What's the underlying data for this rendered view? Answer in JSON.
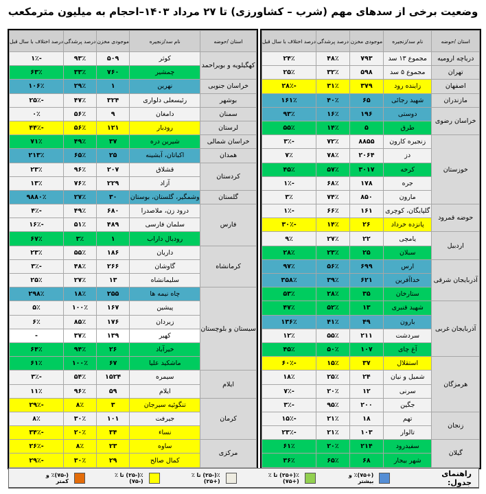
{
  "title": "وضعیت برخی از سدهای مهم (شرب – کشاورزی) تا ۲۷ مرداد ۱۴۰۳–احجام به میلیون مترمکعب",
  "headers": [
    "استان /حوضه",
    "نام سد/زنجیره",
    "موجودی مخزن",
    "درصد پرشدگی",
    "درصد اختلاف با سال قبل"
  ],
  "colors": {
    "green": "#00cc5f",
    "blue": "#4bacc6",
    "yellow": "#ffff00",
    "light": "#f2f2f2",
    "white": "#ffffff",
    "province": "#d9d9d9",
    "header": "#d0d0d0"
  },
  "tables": [
    {
      "groups": [
        {
          "province": "دریاچه ارومیه",
          "dams": [
            {
              "name": "مجموع ۱۳ سد",
              "volume": "۷۹۳",
              "fill": "۴۸٪",
              "diff": "۲۴٪",
              "status": "light"
            }
          ]
        },
        {
          "province": "تهران",
          "dams": [
            {
              "name": "مجموع ۵ سد",
              "volume": "۵۹۸",
              "fill": "۳۲٪",
              "diff": "۲۵٪",
              "status": "light"
            }
          ]
        },
        {
          "province": "اصفهان",
          "dams": [
            {
              "name": "زاینده رود",
              "volume": "۳۷۹",
              "fill": "۳۱٪",
              "diff": "-۲۸٪",
              "status": "yellow"
            }
          ]
        },
        {
          "province": "مازندران",
          "dams": [
            {
              "name": "شهید رجائی",
              "volume": "۶۵",
              "fill": "۴۰٪",
              "diff": "۱۶۱٪",
              "status": "blue"
            }
          ]
        },
        {
          "province": "خراسان رضوی",
          "dams": [
            {
              "name": "دوستی",
              "volume": "۱۹۶",
              "fill": "۱۶٪",
              "diff": "۹۳٪",
              "status": "blue"
            },
            {
              "name": "طرق",
              "volume": "۵",
              "fill": "۱۴٪",
              "diff": "۵۵٪",
              "status": "green"
            }
          ]
        },
        {
          "province": "خوزستان",
          "dams": [
            {
              "name": "زنجیره کارون",
              "volume": "۸۸۵۵",
              "fill": "۷۲٪",
              "diff": "-۳٪",
              "status": "light"
            },
            {
              "name": "دز",
              "volume": "۲۰۶۴",
              "fill": "۷۸٪",
              "diff": "۷٪",
              "status": "light"
            },
            {
              "name": "کرخه",
              "volume": "۳۰۱۷",
              "fill": "۵۷٪",
              "diff": "۴۵٪",
              "status": "green"
            },
            {
              "name": "جره",
              "volume": "۱۷۸",
              "fill": "۶۸٪",
              "diff": "-۱٪",
              "status": "light"
            },
            {
              "name": "مارون",
              "volume": "۸۵۰",
              "fill": "۷۴٪",
              "diff": "۳٪",
              "status": "light"
            }
          ]
        },
        {
          "province": "حوضه قمرود",
          "dams": [
            {
              "name": "گلپایگان، کوچری",
              "volume": "۱۶۱",
              "fill": "۶۶٪",
              "diff": "-۱٪",
              "status": "light"
            },
            {
              "name": "پانزده خرداد",
              "volume": "۲۶",
              "fill": "۱۴٪",
              "diff": "-۳۰٪",
              "status": "yellow"
            }
          ]
        },
        {
          "province": "اردبیل",
          "dams": [
            {
              "name": "یامچی",
              "volume": "۲۲",
              "fill": "۲۷٪",
              "diff": "۹٪",
              "status": "light"
            },
            {
              "name": "سبلان",
              "volume": "۲۵",
              "fill": "۲۳٪",
              "diff": "۲۸٪",
              "status": "green"
            }
          ]
        },
        {
          "province": "آذربایجان شرقی",
          "dams": [
            {
              "name": "ارس",
              "volume": "۶۹۹",
              "fill": "۵۶٪",
              "diff": "۹۷٪",
              "status": "blue"
            },
            {
              "name": "خداآفرین",
              "volume": "۶۲۱",
              "fill": "۳۹٪",
              "diff": "۳۵۸٪",
              "status": "blue"
            },
            {
              "name": "ستارخان",
              "volume": "۳۵",
              "fill": "۲۸٪",
              "diff": "۵۳٪",
              "status": "green"
            }
          ]
        },
        {
          "province": "آذربایجان غربی",
          "dams": [
            {
              "name": "شهید قنبری",
              "volume": "۱۳",
              "fill": "۵۲٪",
              "diff": "۴۷٪",
              "status": "green"
            },
            {
              "name": "بارون",
              "volume": "۴۹",
              "fill": "۴۱٪",
              "diff": "۱۳۶٪",
              "status": "blue"
            },
            {
              "name": "سردشت",
              "volume": "۲۱۱",
              "fill": "۵۵٪",
              "diff": "۱۲٪",
              "status": "light"
            },
            {
              "name": "آغ چای",
              "volume": "۱۰۷",
              "fill": "۵۰٪",
              "diff": "۴۵٪",
              "status": "green"
            }
          ]
        },
        {
          "province": "هرمزگان",
          "dams": [
            {
              "name": "استقلال",
              "volume": "۳۷",
              "fill": "۱۵٪",
              "diff": "-۶۰٪",
              "status": "yellow"
            },
            {
              "name": "شمیل و نیان",
              "volume": "۲۴",
              "fill": "۲۵٪",
              "diff": "۱۸٪",
              "status": "light"
            },
            {
              "name": "سرنی",
              "volume": "۱۲",
              "fill": "۲۰٪",
              "diff": "-۷٪",
              "status": "light"
            },
            {
              "name": "جگین",
              "volume": "۲۰۰",
              "fill": "۹۵٪",
              "diff": "-۳٪",
              "status": "light"
            }
          ]
        },
        {
          "province": "زنجان",
          "dams": [
            {
              "name": "تهم",
              "volume": "۱۸",
              "fill": "۲۱٪",
              "diff": "-۱۵٪",
              "status": "light"
            },
            {
              "name": "تالوار",
              "volume": "۱۰۳",
              "fill": "۲۱٪",
              "diff": "-۲۳٪",
              "status": "light"
            }
          ]
        },
        {
          "province": "گیلان",
          "dams": [
            {
              "name": "سفیدرود",
              "volume": "۲۱۴",
              "fill": "۲۰٪",
              "diff": "۶۱٪",
              "status": "green"
            },
            {
              "name": "شهر بیجار",
              "volume": "۶۸",
              "fill": "۶۵٪",
              "diff": "۳۶٪",
              "status": "green"
            }
          ]
        }
      ]
    },
    {
      "groups": [
        {
          "province": "کهگیلویه و بویراحمد",
          "dams": [
            {
              "name": "کوثر",
              "volume": "۵۰۹",
              "fill": "۹۳٪",
              "diff": "-۱٪",
              "status": "light"
            },
            {
              "name": "چمشیر",
              "volume": "۷۶۰",
              "fill": "۳۳٪",
              "diff": "۶۳٪",
              "status": "green"
            }
          ]
        },
        {
          "province": "خراسان جنوبی",
          "dams": [
            {
              "name": "نهرین",
              "volume": "۱",
              "fill": "۲۹٪",
              "diff": "۱۰۶٪",
              "status": "blue"
            }
          ]
        },
        {
          "province": "بوشهر",
          "dams": [
            {
              "name": "رئیسعلی دلواری",
              "volume": "۳۲۴",
              "fill": "۴۷٪",
              "diff": "-۲۵٪",
              "status": "light"
            }
          ]
        },
        {
          "province": "سمنان",
          "dams": [
            {
              "name": "دامغان",
              "volume": "۹",
              "fill": "۵۶٪",
              "diff": "۰٪",
              "status": "light"
            }
          ]
        },
        {
          "province": "لرستان",
          "dams": [
            {
              "name": "رودبار",
              "volume": "۱۲۱",
              "fill": "۵۶٪",
              "diff": "-۴۴٪",
              "status": "yellow"
            }
          ]
        },
        {
          "province": "خراسان شمالی",
          "dams": [
            {
              "name": "شیرین دره",
              "volume": "۳۷",
              "fill": "۴۹٪",
              "diff": "۷۱٪",
              "status": "green"
            }
          ]
        },
        {
          "province": "همدان",
          "dams": [
            {
              "name": "اکباتان، آبشینه",
              "volume": "۲۵",
              "fill": "۶۵٪",
              "diff": "۲۱۳٪",
              "status": "blue"
            }
          ]
        },
        {
          "province": "کردستان",
          "dams": [
            {
              "name": "قشلاق",
              "volume": "۲۰۷",
              "fill": "۹۶٪",
              "diff": "۲۳٪",
              "status": "light"
            },
            {
              "name": "آزاد",
              "volume": "۲۲۹",
              "fill": "۷۶٪",
              "diff": "۱۳٪",
              "status": "light"
            }
          ]
        },
        {
          "province": "گلستان",
          "dams": [
            {
              "name": "وشمگیر، گلستان، بوستان",
              "volume": "۳۰",
              "fill": "۲۷٪",
              "diff": "۹۸۸۰٪",
              "status": "blue"
            }
          ]
        },
        {
          "province": "فارس",
          "dams": [
            {
              "name": "درود زن، ملاصدرا",
              "volume": "۶۸۰",
              "fill": "۴۹٪",
              "diff": "-۴٪",
              "status": "light"
            },
            {
              "name": "سلمان فارسی",
              "volume": "۴۸۹",
              "fill": "۵۱٪",
              "diff": "-۱۶٪",
              "status": "light"
            },
            {
              "name": "رودبال داراب",
              "volume": "۱",
              "fill": "۳٪",
              "diff": "۶۷٪",
              "status": "green"
            }
          ]
        },
        {
          "province": "کرمانشاه",
          "dams": [
            {
              "name": "داریان",
              "volume": "۱۸۶",
              "fill": "۵۵٪",
              "diff": "۲۳٪",
              "status": "light"
            },
            {
              "name": "گاوشان",
              "volume": "۲۶۶",
              "fill": "۴۸٪",
              "diff": "-۳٪",
              "status": "light"
            },
            {
              "name": "سلیمانشاه",
              "volume": "۱۳",
              "fill": "۲۷٪",
              "diff": "۲۵٪",
              "status": "light"
            }
          ]
        },
        {
          "province": "سیستان و بلوچستان",
          "dams": [
            {
              "name": "چاه نیمه ها",
              "volume": "۲۵۵",
              "fill": "۱۸٪",
              "diff": "۲۹۸٪",
              "status": "blue"
            },
            {
              "name": "پیشین",
              "volume": "۱۶۷",
              "fill": "۱۰۰٪",
              "diff": "۵٪",
              "status": "light"
            },
            {
              "name": "زیردان",
              "volume": "۱۷۶",
              "fill": "۸۵٪",
              "diff": "۶٪",
              "status": "light"
            },
            {
              "name": "کهیر",
              "volume": "۱۳۹",
              "fill": "۳۷٪",
              "diff": "-",
              "status": "white"
            },
            {
              "name": "خیرآباد",
              "volume": "۲۶",
              "fill": "۹۴٪",
              "diff": "۶۴٪",
              "status": "green"
            },
            {
              "name": "ماشکید علیا",
              "volume": "۶۷",
              "fill": "۱۰۰٪",
              "diff": "۶۱٪",
              "status": "green"
            }
          ]
        },
        {
          "province": "ایلام",
          "dams": [
            {
              "name": "سیمره",
              "volume": "۱۵۲۴",
              "fill": "۵۴٪",
              "diff": "-۳٪",
              "status": "light"
            },
            {
              "name": "ایلام",
              "volume": "۵۹",
              "fill": "۹۶٪",
              "diff": "۱۱٪",
              "status": "light"
            }
          ]
        },
        {
          "province": "کرمان",
          "dams": [
            {
              "name": "تنگوئیه سیرجان",
              "volume": "۳",
              "fill": "۸٪",
              "diff": "-۲۹٪",
              "status": "yellow"
            },
            {
              "name": "جیرفت",
              "volume": "۱۰۱",
              "fill": "۳۰٪",
              "diff": "۸٪",
              "status": "light"
            },
            {
              "name": "نساء",
              "volume": "۳۴",
              "fill": "۲۰٪",
              "diff": "-۳۴٪",
              "status": "yellow"
            }
          ]
        },
        {
          "province": "مرکزی",
          "dams": [
            {
              "name": "ساوه",
              "volume": "۲۳",
              "fill": "۸٪",
              "diff": "-۲۶٪",
              "status": "yellow"
            },
            {
              "name": "کمال صالح",
              "volume": "۲۹",
              "fill": "۳۰٪",
              "diff": "-۲۹٪",
              "status": "yellow"
            }
          ]
        }
      ]
    }
  ],
  "legend": {
    "title": "راهنمای جدول:",
    "items": [
      {
        "label": "(+۷۵)٪ و بیشتر",
        "color": "#558ed5"
      },
      {
        "label": "٪(+۲۵) تا ٪(+۷۵)",
        "color": "#92d050"
      },
      {
        "label": "٪(-۲۵) تا ٪(+۲۵)",
        "color": "#eeece1"
      },
      {
        "label": "٪(-۲۵) تا ٪(-۷۵)",
        "color": "#ffff00"
      },
      {
        "label": "(-۷۵)٪ و کمتر",
        "color": "#e36c0a"
      }
    ]
  }
}
